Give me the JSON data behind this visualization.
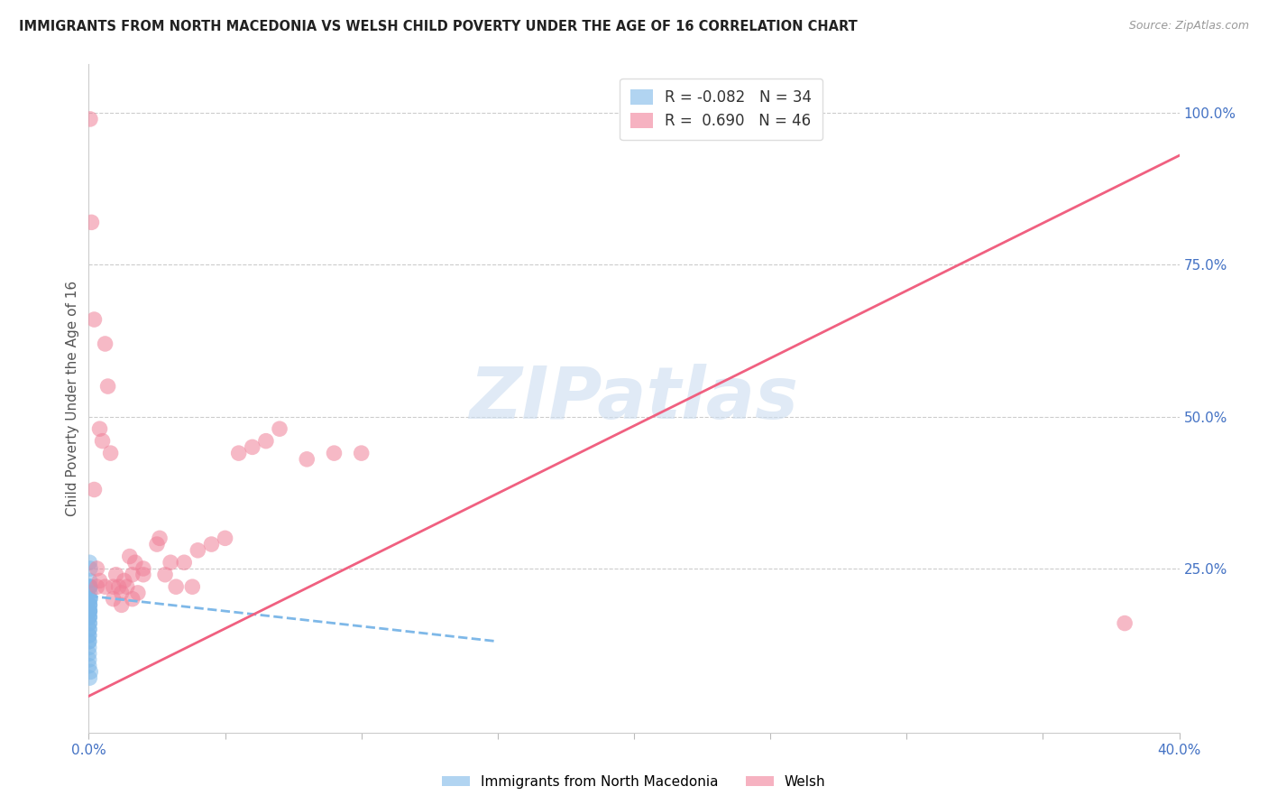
{
  "title": "IMMIGRANTS FROM NORTH MACEDONIA VS WELSH CHILD POVERTY UNDER THE AGE OF 16 CORRELATION CHART",
  "source": "Source: ZipAtlas.com",
  "ylabel": "Child Poverty Under the Age of 16",
  "right_yticks": [
    "100.0%",
    "75.0%",
    "50.0%",
    "25.0%"
  ],
  "right_ytick_vals": [
    1.0,
    0.75,
    0.5,
    0.25
  ],
  "watermark": "ZIPatlas",
  "legend_label1": "Immigrants from North Macedonia",
  "legend_label2": "Welsh",
  "blue_scatter_x": [
    0.0002,
    0.0003,
    0.0002,
    0.0004,
    0.0003,
    0.0001,
    0.0002,
    0.0003,
    0.0004,
    0.0001,
    0.0003,
    0.0002,
    0.0004,
    0.0003,
    0.0001,
    0.0002,
    0.0004,
    0.0001,
    0.0003,
    0.0001,
    0.0004,
    0.0003,
    0.0002,
    0.0003,
    0.0005,
    0.0001,
    0.0003,
    0.0001,
    0.0005,
    0.0003,
    0.0003,
    0.0001,
    0.0006,
    0.0003
  ],
  "blue_scatter_y": [
    0.18,
    0.22,
    0.15,
    0.2,
    0.19,
    0.14,
    0.17,
    0.18,
    0.21,
    0.13,
    0.19,
    0.17,
    0.2,
    0.16,
    0.12,
    0.16,
    0.23,
    0.14,
    0.18,
    0.11,
    0.2,
    0.22,
    0.15,
    0.19,
    0.25,
    0.13,
    0.17,
    0.09,
    0.22,
    0.18,
    0.26,
    0.1,
    0.08,
    0.07
  ],
  "pink_scatter_x": [
    0.0005,
    0.001,
    0.002,
    0.003,
    0.003,
    0.004,
    0.005,
    0.006,
    0.007,
    0.008,
    0.009,
    0.01,
    0.011,
    0.012,
    0.013,
    0.014,
    0.015,
    0.016,
    0.017,
    0.018,
    0.02,
    0.025,
    0.028,
    0.032,
    0.035,
    0.038,
    0.002,
    0.004,
    0.006,
    0.009,
    0.012,
    0.016,
    0.02,
    0.026,
    0.03,
    0.04,
    0.045,
    0.05,
    0.055,
    0.06,
    0.065,
    0.07,
    0.08,
    0.09,
    0.1,
    0.38
  ],
  "pink_scatter_y": [
    0.99,
    0.82,
    0.66,
    0.25,
    0.22,
    0.48,
    0.46,
    0.62,
    0.55,
    0.44,
    0.2,
    0.24,
    0.22,
    0.21,
    0.23,
    0.22,
    0.27,
    0.2,
    0.26,
    0.21,
    0.24,
    0.29,
    0.24,
    0.22,
    0.26,
    0.22,
    0.38,
    0.23,
    0.22,
    0.22,
    0.19,
    0.24,
    0.25,
    0.3,
    0.26,
    0.28,
    0.29,
    0.3,
    0.44,
    0.45,
    0.46,
    0.48,
    0.43,
    0.44,
    0.44,
    0.16
  ],
  "blue_line_x": [
    0.0,
    0.15
  ],
  "blue_line_y": [
    0.205,
    0.13
  ],
  "pink_line_x": [
    0.0,
    0.4
  ],
  "pink_line_y": [
    0.04,
    0.93
  ],
  "xlim": [
    0.0,
    0.4
  ],
  "ylim": [
    -0.02,
    1.08
  ],
  "grid_yticks": [
    0.25,
    0.5,
    0.75,
    1.0
  ],
  "title_color": "#222222",
  "source_color": "#999999",
  "right_tick_color": "#4472c4",
  "bottom_tick_color": "#4472c4",
  "grid_color": "#cccccc",
  "blue_color": "#7eb8e8",
  "pink_color": "#f08098",
  "blue_line_color": "#7eb8e8",
  "pink_line_color": "#f06080",
  "xtick_positions": [
    0.0,
    0.05,
    0.1,
    0.15,
    0.2,
    0.25,
    0.3,
    0.35,
    0.4
  ]
}
